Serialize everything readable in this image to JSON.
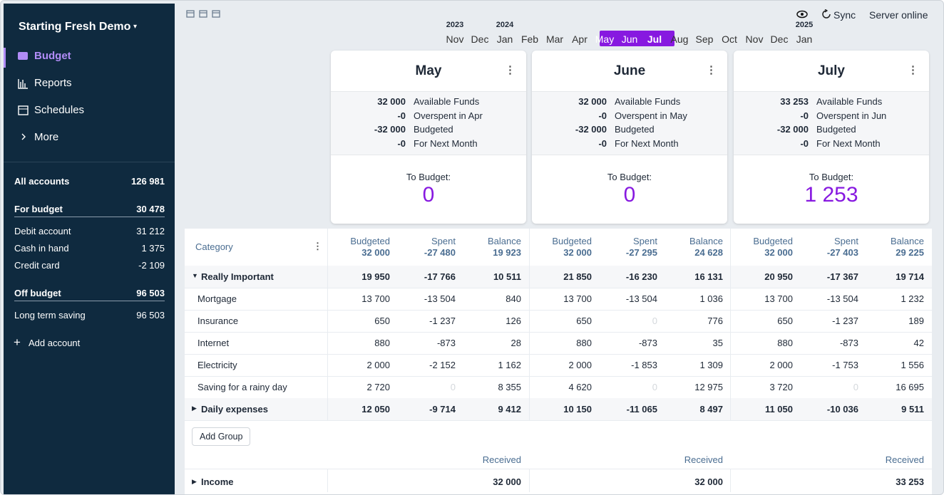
{
  "sidebar": {
    "budget_name": "Starting Fresh Demo",
    "nav": [
      {
        "label": "Budget",
        "active": true
      },
      {
        "label": "Reports"
      },
      {
        "label": "Schedules"
      },
      {
        "label": "More"
      }
    ],
    "accounts": [
      {
        "name": "All accounts",
        "balance": "126 981",
        "total": true
      },
      {
        "name": "For budget",
        "balance": "30 478",
        "total": true
      },
      {
        "name": "Debit account",
        "balance": "31 212"
      },
      {
        "name": "Cash in hand",
        "balance": "1 375"
      },
      {
        "name": "Credit card",
        "balance": "-2 109"
      },
      {
        "name": "Off budget",
        "balance": "96 503",
        "total": true
      },
      {
        "name": "Long term saving",
        "balance": "96 503"
      }
    ],
    "add_account": "Add account"
  },
  "status": {
    "sync": "Sync",
    "server": "Server online"
  },
  "month_picker": [
    {
      "month": "Nov",
      "year": "2023"
    },
    {
      "month": "Dec"
    },
    {
      "month": "Jan",
      "year": "2024"
    },
    {
      "month": "Feb"
    },
    {
      "month": "Mar"
    },
    {
      "month": "Apr"
    },
    {
      "month": "May",
      "selected": true
    },
    {
      "month": "Jun",
      "selected": true
    },
    {
      "month": "Jul",
      "selected": true
    },
    {
      "month": "Aug"
    },
    {
      "month": "Sep"
    },
    {
      "month": "Oct"
    },
    {
      "month": "Nov"
    },
    {
      "month": "Dec"
    },
    {
      "month": "Jan",
      "year": "2025"
    }
  ],
  "months": [
    {
      "title": "May",
      "summary": [
        [
          "32 000",
          "Available Funds"
        ],
        [
          "-0",
          "Overspent in Apr"
        ],
        [
          "-32 000",
          "Budgeted"
        ],
        [
          "-0",
          "For Next Month"
        ]
      ],
      "to_budget_label": "To Budget:",
      "to_budget": "0",
      "totals": [
        "32 000",
        "-27 480",
        "19 923"
      ],
      "received": "32 000"
    },
    {
      "title": "June",
      "summary": [
        [
          "32 000",
          "Available Funds"
        ],
        [
          "-0",
          "Overspent in May"
        ],
        [
          "-32 000",
          "Budgeted"
        ],
        [
          "-0",
          "For Next Month"
        ]
      ],
      "to_budget_label": "To Budget:",
      "to_budget": "0",
      "totals": [
        "32 000",
        "-27 295",
        "24 628"
      ],
      "received": "32 000"
    },
    {
      "title": "July",
      "summary": [
        [
          "33 253",
          "Available Funds"
        ],
        [
          "-0",
          "Overspent in Jun"
        ],
        [
          "-32 000",
          "Budgeted"
        ],
        [
          "-0",
          "For Next Month"
        ]
      ],
      "to_budget_label": "To Budget:",
      "to_budget": "1 253",
      "totals": [
        "32 000",
        "-27 403",
        "29 225"
      ],
      "received": "33 253"
    }
  ],
  "table": {
    "category_header": "Category",
    "columns": [
      "Budgeted",
      "Spent",
      "Balance"
    ],
    "received_label": "Received",
    "add_group": "Add Group",
    "rows": [
      {
        "name": "Really Important",
        "group": true,
        "expanded": true,
        "cells": [
          [
            "19 950",
            "-17 766",
            "10 511"
          ],
          [
            "21 850",
            "-16 230",
            "16 131"
          ],
          [
            "20 950",
            "-17 367",
            "19 714"
          ]
        ]
      },
      {
        "name": "Mortgage",
        "cells": [
          [
            "13 700",
            "-13 504",
            "840"
          ],
          [
            "13 700",
            "-13 504",
            "1 036"
          ],
          [
            "13 700",
            "-13 504",
            "1 232"
          ]
        ]
      },
      {
        "name": "Insurance",
        "cells": [
          [
            "650",
            "-1 237",
            "126"
          ],
          [
            "650",
            "0",
            "776"
          ],
          [
            "650",
            "-1 237",
            "189"
          ]
        ]
      },
      {
        "name": "Internet",
        "cells": [
          [
            "880",
            "-873",
            "28"
          ],
          [
            "880",
            "-873",
            "35"
          ],
          [
            "880",
            "-873",
            "42"
          ]
        ]
      },
      {
        "name": "Electricity",
        "cells": [
          [
            "2 000",
            "-2 152",
            "1 162"
          ],
          [
            "2 000",
            "-1 853",
            "1 309"
          ],
          [
            "2 000",
            "-1 753",
            "1 556"
          ]
        ]
      },
      {
        "name": "Saving for a rainy day",
        "cells": [
          [
            "2 720",
            "0",
            "8 355"
          ],
          [
            "4 620",
            "0",
            "12 975"
          ],
          [
            "3 720",
            "0",
            "16 695"
          ]
        ]
      },
      {
        "name": "Daily expenses",
        "group": true,
        "expanded": false,
        "cells": [
          [
            "12 050",
            "-9 714",
            "9 412"
          ],
          [
            "10 150",
            "-11 065",
            "8 497"
          ],
          [
            "11 050",
            "-10 036",
            "9 511"
          ]
        ]
      }
    ],
    "income": {
      "name": "Income",
      "expanded": false
    }
  }
}
